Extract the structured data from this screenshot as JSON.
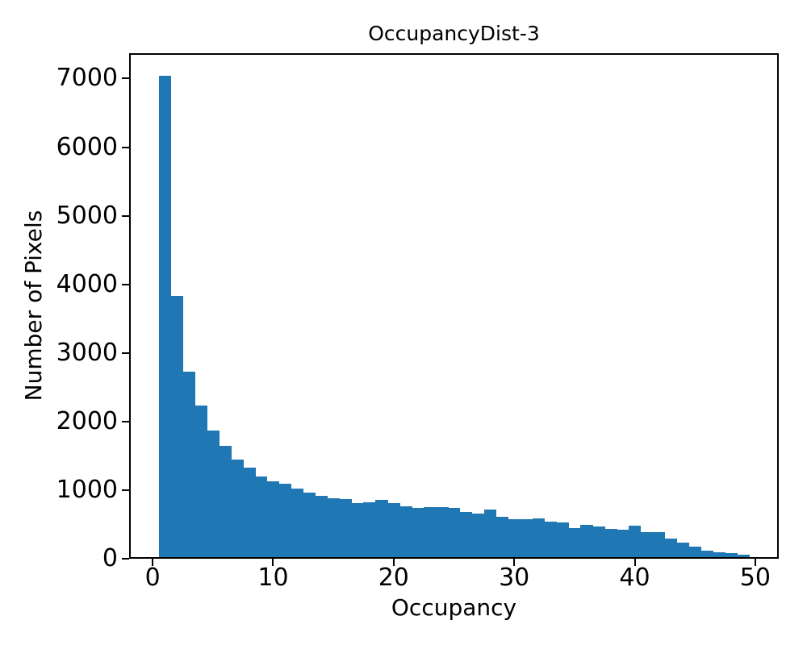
{
  "figure": {
    "background_color": "#ffffff",
    "text_color": "#000000"
  },
  "chart_data": {
    "type": "bar",
    "subtype": "histogram",
    "title": "OccupancyDist-3",
    "xlabel": "Occupancy",
    "ylabel": "Number of Pixels",
    "bar_color": "#1f77b4",
    "grid": false,
    "legend": null,
    "bin_width": 1,
    "bin_centers": [
      1,
      2,
      3,
      4,
      5,
      6,
      7,
      8,
      9,
      10,
      11,
      12,
      13,
      14,
      15,
      16,
      17,
      18,
      19,
      20,
      21,
      22,
      23,
      24,
      25,
      26,
      27,
      28,
      29,
      30,
      31,
      32,
      33,
      34,
      35,
      36,
      37,
      38,
      39,
      40,
      41,
      42,
      43,
      44,
      45,
      46,
      47,
      48,
      49
    ],
    "values": [
      7020,
      3810,
      2700,
      2210,
      1850,
      1620,
      1420,
      1300,
      1180,
      1100,
      1070,
      1000,
      940,
      890,
      860,
      850,
      790,
      800,
      830,
      790,
      740,
      715,
      730,
      730,
      715,
      660,
      640,
      690,
      585,
      550,
      555,
      570,
      515,
      510,
      420,
      475,
      450,
      415,
      400,
      460,
      370,
      360,
      270,
      215,
      155,
      95,
      70,
      60,
      30
    ],
    "xlim": [
      -1.95,
      51.95
    ],
    "ylim": [
      0,
      7370
    ],
    "xticks": [
      0,
      10,
      20,
      30,
      40,
      50
    ],
    "yticks": [
      0,
      1000,
      2000,
      3000,
      4000,
      5000,
      6000,
      7000
    ]
  }
}
